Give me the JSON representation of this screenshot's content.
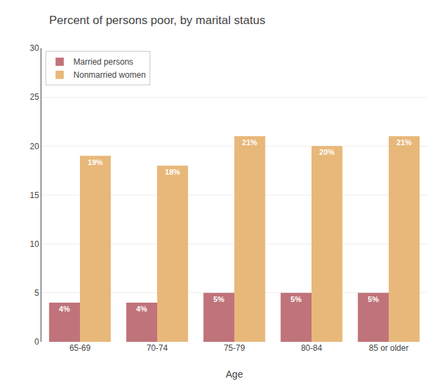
{
  "chart_data": {
    "type": "bar",
    "title": "Percent of persons poor, by marital status",
    "xlabel": "Age",
    "categories": [
      "65-69",
      "70-74",
      "75-79",
      "80-84",
      "85 or older"
    ],
    "series": [
      {
        "name": "Married persons",
        "color": "#c0737a",
        "values": [
          4,
          4,
          5,
          5,
          5
        ],
        "value_labels": [
          "4%",
          "4%",
          "5%",
          "5%",
          "5%"
        ]
      },
      {
        "name": "Nonmarried women",
        "color": "#e8b87a",
        "values": [
          19,
          18,
          21,
          20,
          21
        ],
        "value_labels": [
          "19%",
          "18%",
          "21%",
          "20%",
          "21%"
        ]
      }
    ],
    "ylim": [
      0,
      30
    ],
    "yticks": [
      0,
      5,
      10,
      15,
      20,
      25,
      30
    ],
    "grid": true,
    "legend": "upper left",
    "data_labels": true
  }
}
